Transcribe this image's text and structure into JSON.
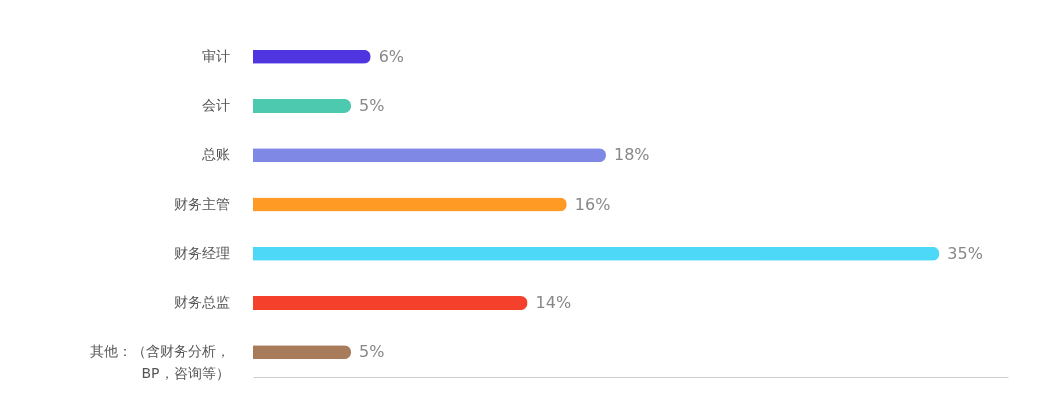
{
  "chart_data": {
    "type": "bar",
    "orientation": "horizontal",
    "categories": [
      "审计",
      "会计",
      "总账",
      "财务主管",
      "财务经理",
      "财务总监",
      "其他：（含财务分析，\nBP，咨询等）"
    ],
    "values": [
      6,
      5,
      18,
      16,
      35,
      14,
      5
    ],
    "colors": [
      "#4f35e0",
      "#4dc9b0",
      "#8088e6",
      "#ff9b24",
      "#4dd8f8",
      "#f5402c",
      "#a87b5a"
    ],
    "value_labels": [
      "6%",
      "5%",
      "18%",
      "16%",
      "35%",
      "14%",
      "5%"
    ]
  }
}
